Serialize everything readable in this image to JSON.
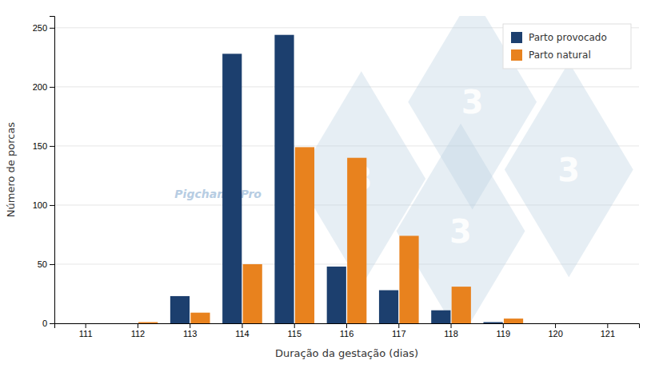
{
  "chart_data": {
    "type": "bar",
    "categories": [
      111,
      112,
      113,
      114,
      115,
      116,
      117,
      118,
      119,
      120,
      121
    ],
    "series": [
      {
        "name": "Parto provocado",
        "color": "#1c3f6e",
        "values": [
          0,
          0,
          23,
          228,
          244,
          48,
          28,
          11,
          1,
          0,
          0
        ]
      },
      {
        "name": "Parto natural",
        "color": "#e8821e",
        "values": [
          0,
          1,
          9,
          50,
          149,
          140,
          74,
          31,
          4,
          0,
          0
        ]
      }
    ],
    "x_label": "Duração da gestação (dias)",
    "y_label": "Número de porcas",
    "ylim": [
      0,
      260
    ],
    "yticks": [
      0,
      50,
      100,
      150,
      200,
      250
    ],
    "grid": true,
    "legend": "upper right",
    "annotations": [
      "3",
      "3",
      "3",
      "3",
      "Pigchamp Pro"
    ]
  }
}
